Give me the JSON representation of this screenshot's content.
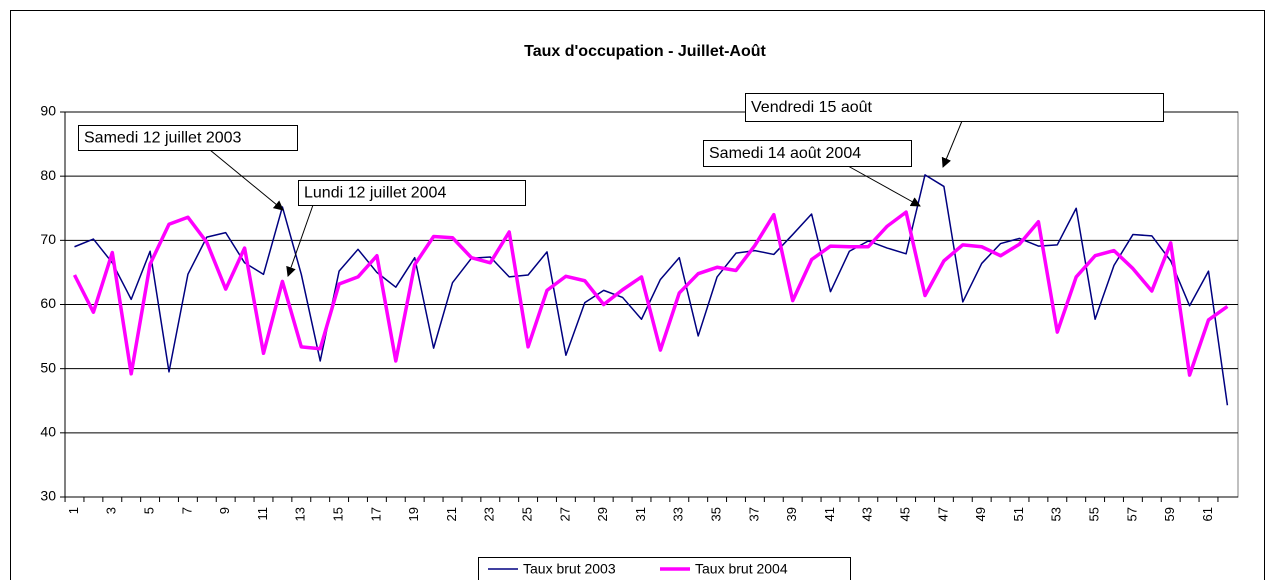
{
  "chart_data": {
    "type": "line",
    "title": "Taux d'occupation - Juillet-Août",
    "categories": [
      1,
      null,
      3,
      null,
      5,
      null,
      7,
      null,
      9,
      null,
      11,
      null,
      13,
      null,
      15,
      null,
      17,
      null,
      19,
      null,
      21,
      null,
      23,
      null,
      25,
      null,
      27,
      null,
      29,
      null,
      31,
      null,
      33,
      null,
      35,
      null,
      37,
      null,
      39,
      null,
      41,
      null,
      43,
      null,
      45,
      null,
      47,
      null,
      49,
      null,
      51,
      null,
      53,
      null,
      55,
      null,
      57,
      null,
      59,
      null,
      61,
      null
    ],
    "series": [
      {
        "name": "Taux brut 2003",
        "color": "#000080",
        "values": [
          69,
          70.2,
          66.5,
          60.8,
          68.3,
          49.5,
          64.7,
          70.5,
          71.2,
          66.5,
          64.7,
          75.2,
          64.7,
          51.2,
          65.2,
          68.6,
          65,
          62.7,
          67.3,
          53.2,
          63.4,
          67.2,
          67.4,
          64.3,
          64.6,
          68.2,
          52.1,
          60.3,
          62.2,
          61.1,
          57.7,
          63.9,
          67.3,
          55.1,
          64.3,
          68,
          68.4,
          67.8,
          70.9,
          74.1,
          62,
          68.3,
          69.9,
          68.8,
          67.9,
          80.2,
          78.4,
          60.4,
          66.4,
          69.5,
          70.3,
          69.1,
          69.3,
          75,
          57.7,
          66.1,
          70.9,
          70.7,
          66.8,
          59.8,
          65.2,
          44.3
        ]
      },
      {
        "name": "Taux brut 2004",
        "color": "#ff00ff",
        "values": [
          64.6,
          58.8,
          68.1,
          49.2,
          66.3,
          72.5,
          73.6,
          69.7,
          62.4,
          68.8,
          52.4,
          63.6,
          53.4,
          53.1,
          63.2,
          64.3,
          67.6,
          51.2,
          66.2,
          70.6,
          70.4,
          67.3,
          66.5,
          71.3,
          53.4,
          62.2,
          64.4,
          63.7,
          60,
          62.3,
          64.3,
          52.9,
          61.8,
          64.8,
          65.8,
          65.3,
          69.2,
          74,
          60.6,
          67,
          69.1,
          69,
          69,
          72.2,
          74.4,
          61.4,
          66.8,
          69.3,
          69,
          67.6,
          69.4,
          72.9,
          55.7,
          64.3,
          67.6,
          68.4,
          65.6,
          62.1,
          69.6,
          49,
          57.6,
          59.7
        ]
      }
    ],
    "ylim": [
      30,
      90
    ],
    "yticks": [
      30,
      40,
      50,
      60,
      70,
      80,
      90
    ],
    "grid": true,
    "legend": "bottom",
    "annotations": [
      "Samedi 12 juillet 2003",
      "Lundi 12 juillet 2004",
      "Samedi 14 août 2004",
      "Vendredi 15 août"
    ]
  }
}
